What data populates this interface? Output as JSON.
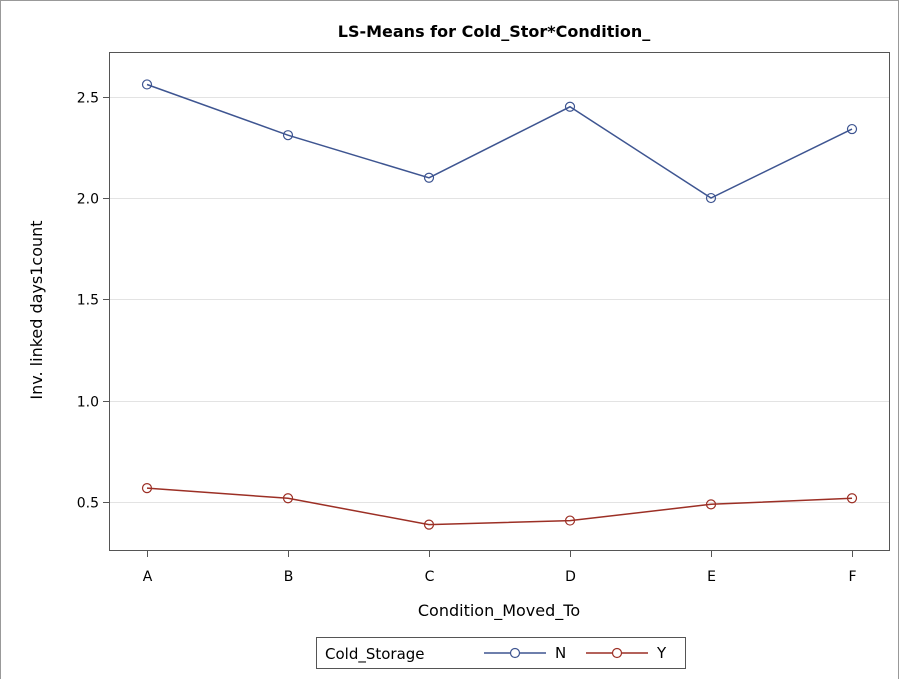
{
  "chart_data": {
    "type": "line",
    "title": "LS-Means for Cold_Stor*Condition_",
    "xlabel": "Condition_Moved_To",
    "ylabel": "Inv. linked days1count",
    "categories": [
      "A",
      "B",
      "C",
      "D",
      "E",
      "F"
    ],
    "ylim": [
      0.26,
      2.72
    ],
    "yticks": [
      0.5,
      1.0,
      1.5,
      2.0,
      2.5
    ],
    "ytick_labels": [
      "0.5",
      "1.0",
      "1.5",
      "2.0",
      "2.5"
    ],
    "grid": "horizontal",
    "legend": {
      "title": "Cold_Storage",
      "placement": "bottom-center"
    },
    "series": [
      {
        "name": "N",
        "color": "#3e5591",
        "marker": "circle",
        "values": [
          2.56,
          2.31,
          2.1,
          2.45,
          2.0,
          2.34
        ]
      },
      {
        "name": "Y",
        "color": "#9c2f25",
        "marker": "circle",
        "values": [
          0.57,
          0.52,
          0.39,
          0.41,
          0.49,
          0.52
        ]
      }
    ]
  }
}
